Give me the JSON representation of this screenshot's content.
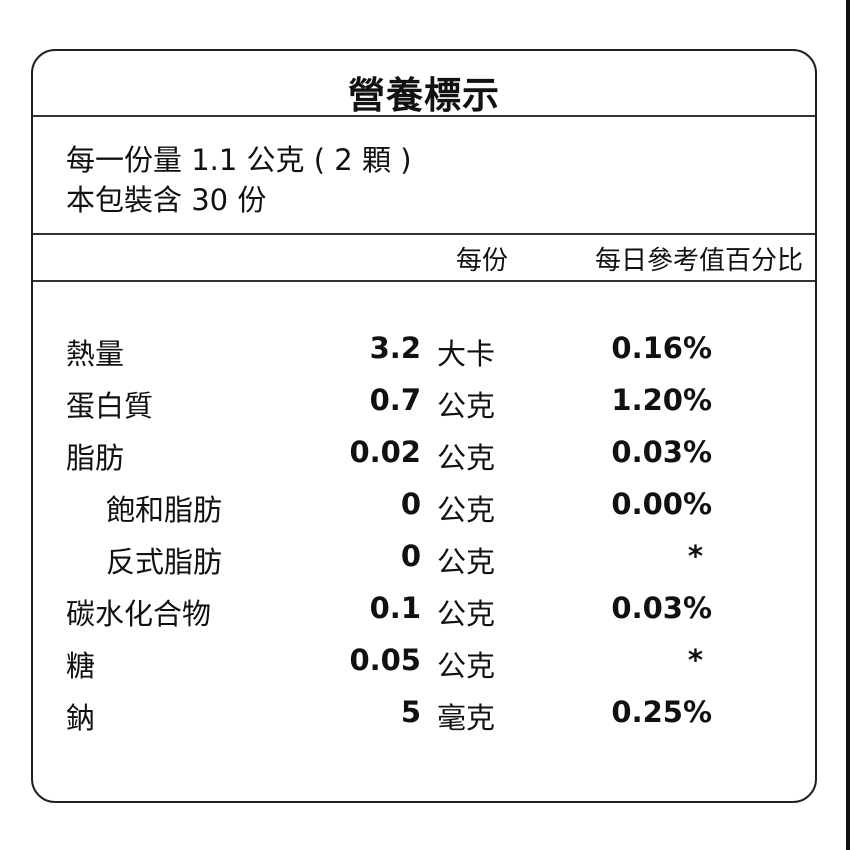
{
  "title": "營養標示",
  "serving": {
    "size_line": "每一份量 1.1 公克 ( 2 顆 )",
    "servings_line": "本包裝含 30 份"
  },
  "header": {
    "per_serving": "每份",
    "daily_value": "每日參考值百分比"
  },
  "rows": [
    {
      "name": "熱量",
      "amount": "3.2",
      "unit": "大卡",
      "pct": "0.16%"
    },
    {
      "name": "蛋白質",
      "amount": "0.7",
      "unit": "公克",
      "pct": "1.20%"
    },
    {
      "name": "脂肪",
      "amount": "0.02",
      "unit": "公克",
      "pct": "0.03%"
    },
    {
      "name": "飽和脂肪",
      "amount": "0",
      "unit": "公克",
      "pct": "0.00%"
    },
    {
      "name": "反式脂肪",
      "amount": "0",
      "unit": "公克",
      "pct": "*"
    },
    {
      "name": "碳水化合物",
      "amount": "0.1",
      "unit": "公克",
      "pct": "0.03%"
    },
    {
      "name": "糖",
      "amount": "0.05",
      "unit": "公克",
      "pct": "*"
    },
    {
      "name": "鈉",
      "amount": "5",
      "unit": "毫克",
      "pct": "0.25%"
    }
  ]
}
